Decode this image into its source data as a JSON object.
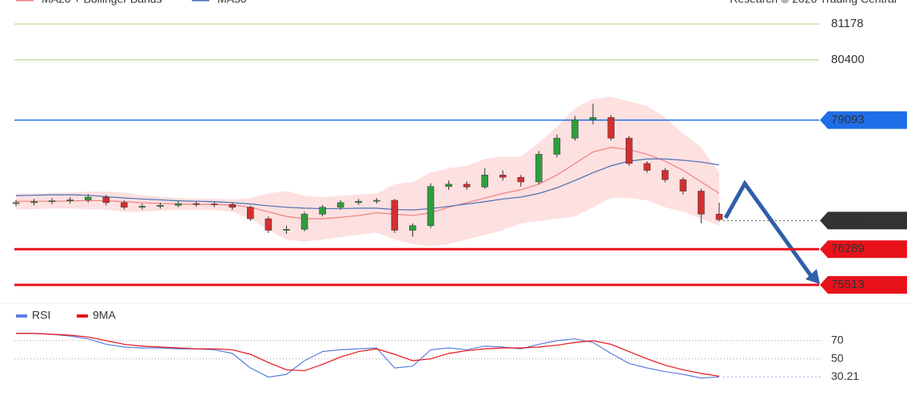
{
  "chart_data": [
    {
      "type": "candlestick",
      "legend": [
        "MA20 + Bollinger Bands",
        "MA50"
      ],
      "credit": "Research © 2020 Trading Central",
      "ylim": [
        75150,
        81700
      ],
      "open": [
        77280,
        77300,
        77320,
        77340,
        77360,
        77420,
        77300,
        77200,
        77220,
        77240,
        77280,
        77270,
        77260,
        77200,
        76950,
        76700,
        76720,
        77050,
        77200,
        77300,
        77330,
        77350,
        76700,
        76800,
        77650,
        77700,
        77640,
        77900,
        77850,
        77750,
        78350,
        78700,
        79100,
        79150,
        78700,
        78150,
        78000,
        77800,
        77550,
        77050
      ],
      "high": [
        77360,
        77380,
        77400,
        77420,
        77480,
        77470,
        77350,
        77280,
        77300,
        77330,
        77330,
        77320,
        77300,
        77230,
        77000,
        76800,
        77100,
        77250,
        77350,
        77380,
        77400,
        77380,
        76850,
        77720,
        77780,
        77760,
        78050,
        78000,
        77900,
        78420,
        78780,
        79180,
        79450,
        79200,
        78750,
        78200,
        78050,
        77850,
        77600,
        77300
      ],
      "low": [
        77220,
        77240,
        77260,
        77280,
        77300,
        77240,
        77150,
        77150,
        77170,
        77200,
        77210,
        77200,
        77140,
        76900,
        76640,
        76620,
        76680,
        77000,
        77150,
        77250,
        77280,
        76640,
        76560,
        76750,
        77580,
        77580,
        77600,
        77780,
        77650,
        77700,
        78280,
        78650,
        79000,
        78650,
        78100,
        77950,
        77740,
        77480,
        76850,
        76890
      ],
      "close": [
        77300,
        77320,
        77340,
        77360,
        77420,
        77300,
        77200,
        77220,
        77240,
        77280,
        77270,
        77260,
        77200,
        76950,
        76700,
        76720,
        77050,
        77200,
        77300,
        77330,
        77350,
        76700,
        76800,
        77650,
        77700,
        77640,
        77900,
        77850,
        77750,
        78350,
        78700,
        79100,
        79150,
        78700,
        78150,
        78000,
        77800,
        77550,
        77050,
        76930
      ],
      "up_color": "#2e9e3e",
      "down_color": "#d32f2f",
      "ma20": {
        "color": "#f08080",
        "values": [
          77330,
          77330,
          77330,
          77335,
          77345,
          77340,
          77320,
          77300,
          77280,
          77270,
          77260,
          77260,
          77250,
          77200,
          77100,
          77000,
          76950,
          76950,
          76980,
          77020,
          77080,
          77050,
          77020,
          77080,
          77200,
          77300,
          77400,
          77500,
          77580,
          77700,
          77900,
          78150,
          78400,
          78500,
          78450,
          78350,
          78200,
          78000,
          77750,
          77500
        ]
      },
      "ma50": {
        "color": "#4a6fb5",
        "values": [
          77450,
          77460,
          77470,
          77470,
          77460,
          77430,
          77400,
          77380,
          77360,
          77340,
          77330,
          77320,
          77300,
          77270,
          77230,
          77200,
          77180,
          77170,
          77170,
          77180,
          77180,
          77150,
          77140,
          77170,
          77220,
          77270,
          77320,
          77380,
          77420,
          77500,
          77620,
          77780,
          77950,
          78100,
          78200,
          78250,
          78250,
          78220,
          78180,
          78120
        ]
      },
      "bb_upper": [
        77500,
        77500,
        77510,
        77520,
        77540,
        77540,
        77520,
        77460,
        77430,
        77400,
        77390,
        77380,
        77370,
        77400,
        77500,
        77550,
        77450,
        77420,
        77450,
        77480,
        77500,
        77700,
        77750,
        77950,
        78050,
        78100,
        78250,
        78300,
        78300,
        78600,
        78950,
        79350,
        79550,
        79600,
        79500,
        79400,
        79150,
        78800,
        78500,
        77950
      ],
      "bb_lower": [
        77150,
        77160,
        77170,
        77170,
        77160,
        77150,
        77100,
        77100,
        77120,
        77140,
        77140,
        77140,
        77100,
        76950,
        76700,
        76500,
        76450,
        76500,
        76550,
        76600,
        76650,
        76500,
        76400,
        76350,
        76400,
        76500,
        76600,
        76700,
        76850,
        76900,
        76950,
        77000,
        77200,
        77400,
        77400,
        77350,
        77200,
        77100,
        76950,
        76800
      ],
      "band_color": "#fde0e0",
      "levels": [
        {
          "value": 81178,
          "color": "#8bc34a"
        },
        {
          "value": 80400,
          "color": "#8bc34a"
        },
        {
          "value": 79093,
          "color": "#1e6ee8"
        },
        {
          "value": 76911,
          "color": "#333333"
        },
        {
          "value": 76289,
          "color": "#e8121b"
        },
        {
          "value": 75513,
          "color": "#e8121b"
        }
      ]
    },
    {
      "type": "line",
      "ylim": [
        20,
        90
      ],
      "yticks": [
        50,
        70
      ],
      "last_value": 30.21,
      "series": [
        {
          "name": "RSI",
          "color": "#5b7fe0",
          "values": [
            78,
            78,
            77,
            75,
            72,
            66,
            63,
            62,
            62,
            61,
            61,
            60,
            56,
            40,
            30,
            33,
            48,
            58,
            60,
            61,
            62,
            40,
            42,
            60,
            62,
            60,
            64,
            63,
            61,
            66,
            70,
            72,
            68,
            56,
            45,
            40,
            36,
            33,
            29,
            30.21
          ]
        },
        {
          "name": "9MA",
          "color": "#e8121b",
          "values": [
            78,
            78,
            77,
            76,
            74,
            70,
            66,
            64,
            63,
            62,
            61,
            61,
            60,
            55,
            46,
            38,
            37,
            44,
            52,
            58,
            61,
            55,
            48,
            50,
            56,
            59,
            61,
            62,
            62,
            63,
            65,
            68,
            70,
            66,
            58,
            50,
            43,
            38,
            34,
            31
          ]
        }
      ]
    }
  ]
}
